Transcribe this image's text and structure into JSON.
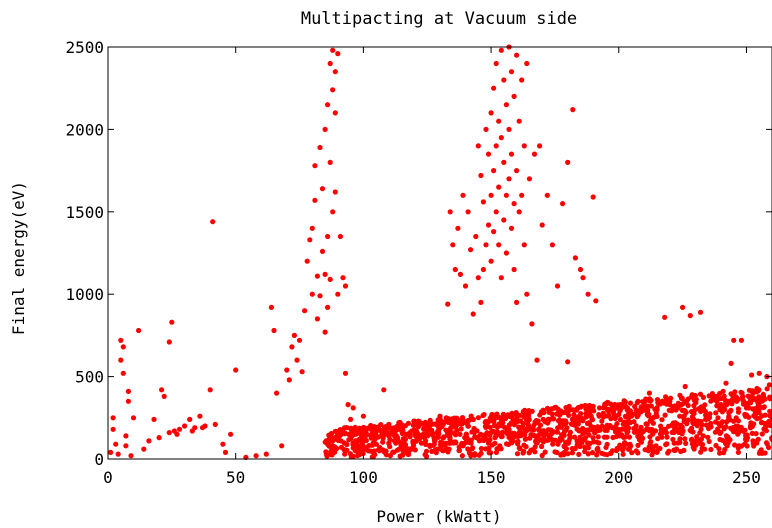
{
  "chart_data": {
    "type": "scatter",
    "title": "Multipacting at Vacuum side",
    "xlabel": "Power (kWatt)",
    "ylabel": "Final energy(eV)",
    "xlim": [
      0,
      260
    ],
    "ylim": [
      0,
      2500
    ],
    "xticks": [
      "0",
      "50",
      "100",
      "150",
      "200",
      "250"
    ],
    "yticks": [
      "0",
      "500",
      "1000",
      "1500",
      "2000",
      "2500"
    ],
    "grid": false,
    "legend": "none",
    "marker_color": "#ff0000",
    "series": [
      {
        "points": [
          [
            1,
            40
          ],
          [
            2,
            180
          ],
          [
            2,
            250
          ],
          [
            3,
            90
          ],
          [
            4,
            30
          ],
          [
            5,
            600
          ],
          [
            5,
            720
          ],
          [
            6,
            680
          ],
          [
            6,
            520
          ],
          [
            7,
            140
          ],
          [
            7,
            80
          ],
          [
            8,
            410
          ],
          [
            8,
            350
          ],
          [
            9,
            20
          ],
          [
            10,
            250
          ],
          [
            12,
            780
          ],
          [
            14,
            60
          ],
          [
            16,
            110
          ],
          [
            18,
            240
          ],
          [
            20,
            130
          ],
          [
            21,
            420
          ],
          [
            22,
            380
          ],
          [
            24,
            710
          ],
          [
            24,
            160
          ],
          [
            25,
            830
          ],
          [
            26,
            170
          ],
          [
            27,
            150
          ],
          [
            28,
            180
          ],
          [
            30,
            200
          ],
          [
            32,
            240
          ],
          [
            33,
            170
          ],
          [
            34,
            190
          ],
          [
            36,
            260
          ],
          [
            37,
            190
          ],
          [
            38,
            200
          ],
          [
            40,
            420
          ],
          [
            41,
            1440
          ],
          [
            42,
            210
          ],
          [
            45,
            90
          ],
          [
            46,
            40
          ],
          [
            48,
            150
          ],
          [
            50,
            540
          ],
          [
            54,
            10
          ],
          [
            58,
            20
          ],
          [
            62,
            30
          ],
          [
            64,
            920
          ],
          [
            65,
            780
          ],
          [
            66,
            400
          ],
          [
            68,
            80
          ],
          [
            70,
            540
          ],
          [
            71,
            480
          ],
          [
            72,
            680
          ],
          [
            73,
            750
          ],
          [
            74,
            600
          ],
          [
            75,
            720
          ],
          [
            76,
            530
          ],
          [
            77,
            900
          ],
          [
            78,
            1200
          ],
          [
            79,
            1330
          ],
          [
            80,
            1400
          ],
          [
            80,
            1000
          ],
          [
            81,
            1780
          ],
          [
            81,
            1570
          ],
          [
            82,
            1110
          ],
          [
            82,
            850
          ],
          [
            83,
            1890
          ],
          [
            83,
            990
          ],
          [
            84,
            1640
          ],
          [
            84,
            1260
          ],
          [
            85,
            2000
          ],
          [
            85,
            1120
          ],
          [
            85,
            770
          ],
          [
            86,
            2150
          ],
          [
            86,
            1350
          ],
          [
            86,
            920
          ],
          [
            87,
            2400
          ],
          [
            87,
            1800
          ],
          [
            87,
            1090
          ],
          [
            88,
            2480
          ],
          [
            88,
            2240
          ],
          [
            88,
            1500
          ],
          [
            89,
            2350
          ],
          [
            89,
            2100
          ],
          [
            89,
            1620
          ],
          [
            90,
            2460
          ],
          [
            90,
            1000
          ],
          [
            91,
            1350
          ],
          [
            92,
            1100
          ],
          [
            93,
            1050
          ],
          [
            93,
            520
          ],
          [
            94,
            330
          ],
          [
            95,
            240
          ],
          [
            96,
            310
          ],
          [
            97,
            150
          ],
          [
            99,
            150
          ],
          [
            100,
            260
          ],
          [
            103,
            180
          ],
          [
            108,
            420
          ],
          [
            110,
            210
          ],
          [
            115,
            190
          ],
          [
            120,
            230
          ],
          [
            125,
            200
          ],
          [
            130,
            260
          ],
          [
            133,
            940
          ],
          [
            134,
            1500
          ],
          [
            135,
            1300
          ],
          [
            136,
            1150
          ],
          [
            137,
            1400
          ],
          [
            138,
            1120
          ],
          [
            139,
            1600
          ],
          [
            140,
            1050
          ],
          [
            141,
            1500
          ],
          [
            142,
            1270
          ],
          [
            143,
            880
          ],
          [
            144,
            1350
          ],
          [
            145,
            1100
          ],
          [
            145,
            1900
          ],
          [
            146,
            1720
          ],
          [
            146,
            950
          ],
          [
            147,
            1150
          ],
          [
            147,
            1560
          ],
          [
            148,
            2000
          ],
          [
            148,
            1300
          ],
          [
            149,
            1850
          ],
          [
            149,
            1420
          ],
          [
            150,
            2100
          ],
          [
            150,
            1600
          ],
          [
            150,
            1200
          ],
          [
            151,
            2250
          ],
          [
            151,
            1750
          ],
          [
            151,
            1380
          ],
          [
            152,
            2400
          ],
          [
            152,
            1900
          ],
          [
            152,
            1500
          ],
          [
            153,
            2050
          ],
          [
            153,
            1650
          ],
          [
            153,
            1300
          ],
          [
            154,
            2480
          ],
          [
            154,
            1950
          ],
          [
            154,
            1100
          ],
          [
            155,
            2300
          ],
          [
            155,
            1800
          ],
          [
            155,
            1450
          ],
          [
            156,
            2150
          ],
          [
            156,
            1600
          ],
          [
            156,
            1250
          ],
          [
            157,
            2500
          ],
          [
            157,
            2000
          ],
          [
            157,
            1700
          ],
          [
            158,
            2350
          ],
          [
            158,
            1850
          ],
          [
            158,
            1400
          ],
          [
            159,
            2200
          ],
          [
            159,
            1550
          ],
          [
            159,
            1150
          ],
          [
            160,
            2450
          ],
          [
            160,
            1750
          ],
          [
            160,
            950
          ],
          [
            161,
            2050
          ],
          [
            161,
            1500
          ],
          [
            162,
            2300
          ],
          [
            162,
            1600
          ],
          [
            163,
            1900
          ],
          [
            163,
            1300
          ],
          [
            164,
            2400
          ],
          [
            164,
            1000
          ],
          [
            165,
            1700
          ],
          [
            166,
            820
          ],
          [
            167,
            1850
          ],
          [
            168,
            600
          ],
          [
            169,
            1900
          ],
          [
            170,
            1420
          ],
          [
            172,
            1600
          ],
          [
            174,
            1300
          ],
          [
            176,
            1050
          ],
          [
            178,
            1550
          ],
          [
            180,
            1800
          ],
          [
            180,
            590
          ],
          [
            182,
            2120
          ],
          [
            183,
            1220
          ],
          [
            185,
            1150
          ],
          [
            186,
            1100
          ],
          [
            188,
            1000
          ],
          [
            190,
            1590
          ],
          [
            191,
            960
          ],
          [
            200,
            270
          ],
          [
            205,
            260
          ],
          [
            210,
            310
          ],
          [
            212,
            400
          ],
          [
            215,
            300
          ],
          [
            218,
            860
          ],
          [
            220,
            350
          ],
          [
            222,
            190
          ],
          [
            225,
            920
          ],
          [
            226,
            440
          ],
          [
            228,
            870
          ],
          [
            230,
            300
          ],
          [
            232,
            890
          ],
          [
            235,
            200
          ],
          [
            238,
            280
          ],
          [
            240,
            330
          ],
          [
            242,
            460
          ],
          [
            244,
            580
          ],
          [
            245,
            720
          ],
          [
            246,
            250
          ],
          [
            248,
            720
          ],
          [
            250,
            310
          ],
          [
            252,
            510
          ],
          [
            254,
            300
          ],
          [
            255,
            520
          ],
          [
            256,
            360
          ],
          [
            258,
            500
          ],
          [
            259,
            450
          ],
          [
            260,
            250
          ]
        ]
      }
    ],
    "band": {
      "x_range": [
        85,
        260
      ],
      "y_start_range": [
        10,
        180
      ],
      "y_end_range": [
        30,
        440
      ],
      "density": 1400
    }
  }
}
